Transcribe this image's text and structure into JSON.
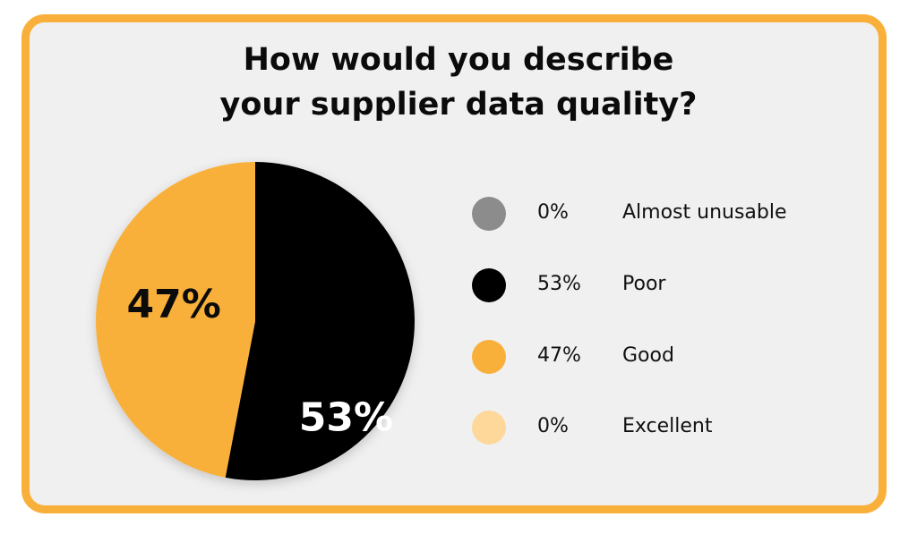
{
  "chart_data": {
    "type": "pie",
    "title_lines": [
      "How would you describe",
      "your supplier data quality?"
    ],
    "slices": [
      {
        "label": "Almost unusable",
        "value": 0,
        "pct_label": "0%",
        "color": "#8C8C8C"
      },
      {
        "label": "Poor",
        "value": 53,
        "pct_label": "53%",
        "color": "#000000"
      },
      {
        "label": "Good",
        "value": 47,
        "pct_label": "47%",
        "color": "#F9B03A"
      },
      {
        "label": "Excellent",
        "value": 0,
        "pct_label": "0%",
        "color": "#FDD89A"
      }
    ],
    "slice_labels_on_pie": [
      "53%",
      "47%"
    ],
    "legend_placement": "right",
    "frame_color": "#F9B03A",
    "background_color": "#F0F0F0"
  }
}
